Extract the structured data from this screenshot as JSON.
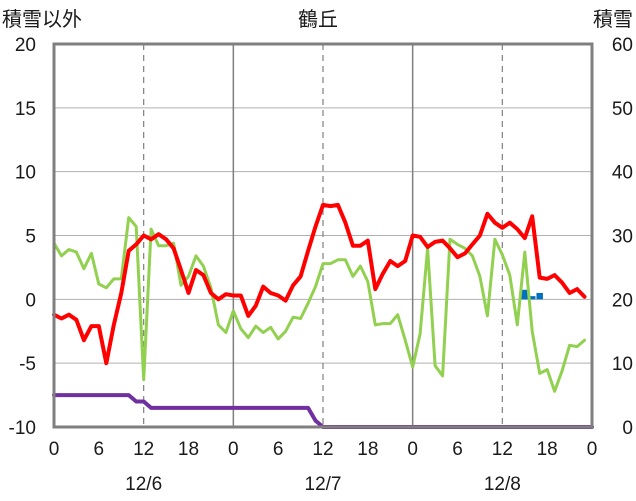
{
  "chart_data": {
    "type": "line",
    "title": "鶴丘",
    "left_axis_label": "積雪以外",
    "right_axis_label": "積雪",
    "left_ylim": [
      -10,
      20
    ],
    "left_yticks": [
      "20",
      "15",
      "10",
      "5",
      "0",
      "-5",
      "-10"
    ],
    "right_ylim": [
      0,
      60
    ],
    "right_yticks": [
      "60",
      "50",
      "40",
      "30",
      "20",
      "10",
      "0"
    ],
    "xlim": [
      0,
      72
    ],
    "hour_ticks": [
      "0",
      "6",
      "12",
      "18",
      "0",
      "6",
      "12",
      "18",
      "0",
      "6",
      "12",
      "18",
      "0"
    ],
    "day_labels": [
      {
        "label": "12/6",
        "x": 12
      },
      {
        "label": "12/7",
        "x": 36
      },
      {
        "label": "12/8",
        "x": 60
      }
    ],
    "grid": true,
    "series": [
      {
        "color": "#ff0000",
        "axis": "left",
        "stroke_width": 4,
        "x": [
          0,
          1,
          2,
          3,
          4,
          5,
          6,
          7,
          8,
          9,
          10,
          11,
          12,
          13,
          14,
          15,
          16,
          17,
          18,
          19,
          20,
          21,
          22,
          23,
          24,
          25,
          26,
          27,
          28,
          29,
          30,
          31,
          32,
          33,
          34,
          35,
          36,
          37,
          38,
          39,
          40,
          41,
          42,
          43,
          44,
          45,
          46,
          47,
          48,
          49,
          50,
          51,
          52,
          53,
          54,
          55,
          56,
          57,
          58,
          59,
          60,
          61,
          62,
          63,
          64,
          65,
          66,
          67,
          68,
          69,
          70,
          71,
          72
        ],
        "values": [
          -1.2,
          -1.5,
          -1.2,
          -1.6,
          -3.2,
          -2.1,
          -2.1,
          -5.0,
          -2.0,
          0.5,
          3.8,
          4.3,
          5.0,
          4.7,
          5.1,
          4.7,
          4.0,
          2.3,
          0.5,
          2.3,
          1.9,
          0.5,
          0.0,
          0.4,
          0.3,
          0.3,
          -1.3,
          -0.5,
          1.0,
          0.5,
          0.3,
          -0.1,
          1.1,
          1.8,
          3.8,
          5.7,
          7.4,
          7.3,
          7.4,
          6.0,
          4.2,
          4.2,
          4.6,
          0.8,
          2.0,
          3.0,
          2.6,
          3.0,
          5.0,
          4.9,
          4.1,
          4.5,
          4.6,
          4.0,
          3.3,
          3.6,
          4.3,
          5.0,
          6.7,
          6.0,
          5.6,
          6.0,
          5.5,
          4.8,
          6.5,
          1.7,
          1.6,
          1.9,
          1.3,
          0.5,
          0.8,
          0.2,
          null
        ]
      },
      {
        "color": "#92d050",
        "axis": "left",
        "stroke_width": 3,
        "x": [
          0,
          1,
          2,
          3,
          4,
          5,
          6,
          7,
          8,
          9,
          10,
          11,
          12,
          13,
          14,
          15,
          16,
          17,
          18,
          19,
          20,
          21,
          22,
          23,
          24,
          25,
          26,
          27,
          28,
          29,
          30,
          31,
          32,
          33,
          34,
          35,
          36,
          37,
          38,
          39,
          40,
          41,
          42,
          43,
          44,
          45,
          46,
          47,
          48,
          49,
          50,
          51,
          52,
          53,
          54,
          55,
          56,
          57,
          58,
          59,
          60,
          61,
          62,
          63,
          64,
          65,
          66,
          67,
          68,
          69,
          70,
          71,
          72
        ],
        "values": [
          4.4,
          3.4,
          3.9,
          3.7,
          2.4,
          3.6,
          1.2,
          0.9,
          1.6,
          1.6,
          6.4,
          5.7,
          -6.3,
          5.5,
          4.2,
          4.2,
          4.4,
          1.1,
          1.8,
          3.4,
          2.6,
          0.9,
          -2.0,
          -2.6,
          -0.9,
          -2.3,
          -3.0,
          -2.1,
          -2.6,
          -2.2,
          -3.1,
          -2.5,
          -1.4,
          -1.5,
          -0.3,
          1.0,
          2.8,
          2.8,
          3.1,
          3.1,
          1.8,
          2.6,
          1.4,
          -2.0,
          -1.9,
          -1.9,
          -1.2,
          -3.2,
          -5.3,
          -2.7,
          4.0,
          -5.2,
          -6.0,
          4.7,
          4.3,
          4.0,
          3.4,
          1.8,
          -1.3,
          4.7,
          3.5,
          1.9,
          -2.0,
          3.7,
          -2.5,
          -5.8,
          -5.5,
          -7.2,
          -5.6,
          -3.6,
          -3.7,
          -3.2,
          null
        ]
      },
      {
        "color": "#7030a0",
        "axis": "right",
        "stroke_width": 4,
        "x": [
          0,
          10,
          11,
          12,
          13,
          34,
          35,
          36,
          72
        ],
        "values": [
          5,
          5,
          4,
          4,
          3,
          3,
          1,
          0,
          0
        ]
      }
    ],
    "bars": {
      "color": "#0070c0",
      "axis": "right",
      "x": [
        63,
        64,
        65
      ],
      "values": [
        21.5,
        20.5,
        21.0
      ]
    }
  }
}
